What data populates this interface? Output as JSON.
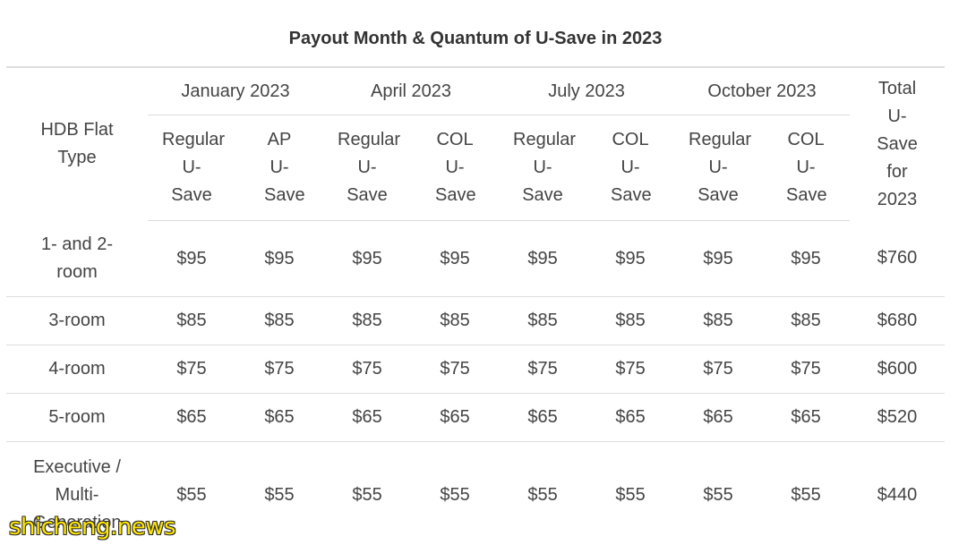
{
  "caption": "Payout Month & Quantum of U-Save in 2023",
  "header": {
    "flat_type": "HDB Flat Type",
    "months": [
      "January 2023",
      "April 2023",
      "July 2023",
      "October 2023"
    ],
    "total": "Total U-Save for 2023",
    "sub": [
      "Regular U-Save",
      "AP U-Save",
      "Regular U-Save",
      "COL U-Save",
      "Regular U-Save",
      "COL U-Save",
      "Regular U-Save",
      "COL U-Save"
    ]
  },
  "rows": [
    {
      "type": "1- and 2-room",
      "values": [
        "$95",
        "$95",
        "$95",
        "$95",
        "$95",
        "$95",
        "$95",
        "$95"
      ],
      "total": "$760"
    },
    {
      "type": "3-room",
      "values": [
        "$85",
        "$85",
        "$85",
        "$85",
        "$85",
        "$85",
        "$85",
        "$85"
      ],
      "total": "$680"
    },
    {
      "type": "4-room",
      "values": [
        "$75",
        "$75",
        "$75",
        "$75",
        "$75",
        "$75",
        "$75",
        "$75"
      ],
      "total": "$600"
    },
    {
      "type": "5-room",
      "values": [
        "$65",
        "$65",
        "$65",
        "$65",
        "$65",
        "$65",
        "$65",
        "$65"
      ],
      "total": "$520"
    },
    {
      "type": "Executive / Multi-Generation",
      "values": [
        "$55",
        "$55",
        "$55",
        "$55",
        "$55",
        "$55",
        "$55",
        "$55"
      ],
      "total": "$440"
    }
  ],
  "watermark": "shicheng.news"
}
